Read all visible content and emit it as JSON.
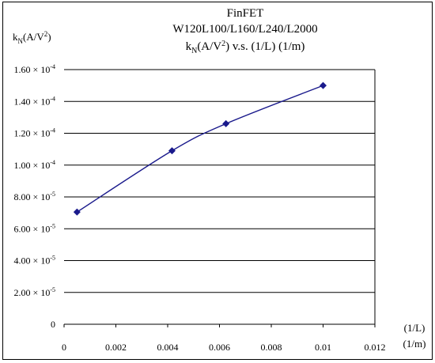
{
  "chart_data": {
    "type": "line",
    "title_lines": [
      "FinFET",
      "W120L100/L160/L240/L2000"
    ],
    "subtitle": {
      "pre": "k",
      "sub": "N",
      "mid": "(A/V",
      "sup": "2",
      "post": ") v.s. (1/L) (1/m)"
    },
    "ylabel": {
      "pre": "k",
      "sub": "N",
      "mid": "(A/V",
      "sup": "2",
      "post": ")"
    },
    "xlabel_lines": [
      "(1/L)",
      "(1/m)"
    ],
    "xlim": [
      0,
      0.012
    ],
    "ylim": [
      0,
      0.00016
    ],
    "x_ticks": [
      "0",
      "0.002",
      "0.004",
      "0.006",
      "0.008",
      "0.01",
      "0.012"
    ],
    "y_ticks": [
      {
        "mant": "0",
        "exp": ""
      },
      {
        "mant": "2.00 × 10",
        "exp": "-5"
      },
      {
        "mant": "4.00 × 10",
        "exp": "-5"
      },
      {
        "mant": "6.00 × 10",
        "exp": "-5"
      },
      {
        "mant": "8.00 × 10",
        "exp": "-5"
      },
      {
        "mant": "1.00 × 10",
        "exp": "-4"
      },
      {
        "mant": "1.20 × 10",
        "exp": "-4"
      },
      {
        "mant": "1.40 × 10",
        "exp": "-4"
      },
      {
        "mant": "1.60 × 10",
        "exp": "-4"
      }
    ],
    "grid": true,
    "series": [
      {
        "color": "#1a1a8c",
        "marker": "diamond",
        "x": [
          0.0005,
          0.0041667,
          0.00625,
          0.01
        ],
        "y": [
          7.05e-05,
          0.000109,
          0.000126,
          0.00015
        ]
      }
    ]
  }
}
